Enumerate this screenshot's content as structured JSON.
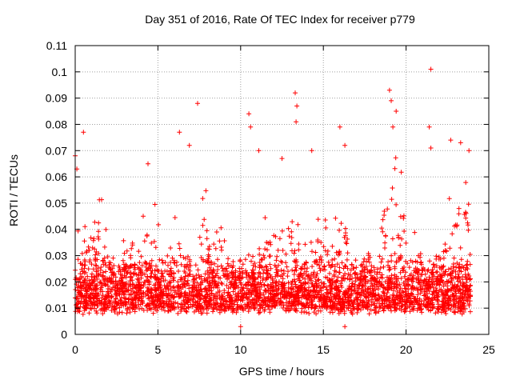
{
  "chart_data": {
    "type": "scatter",
    "title": "Day 351 of 2016, Rate Of TEC Index for receiver p779",
    "xlabel": "GPS time / hours",
    "ylabel": "ROTI / TECUs",
    "xlim": [
      0,
      25
    ],
    "ylim": [
      0,
      0.11
    ],
    "xticks": [
      "0",
      "5",
      "10",
      "15",
      "20",
      "25"
    ],
    "yticks": [
      "0",
      "0.01",
      "0.02",
      "0.03",
      "0.04",
      "0.05",
      "0.06",
      "0.07",
      "0.08",
      "0.09",
      "0.1",
      "0.11"
    ],
    "grid": true,
    "marker": "+",
    "marker_color": "#ff0000",
    "x_data_range": [
      0,
      23.9
    ],
    "typical_band": [
      0.005,
      0.03
    ],
    "peaks": [
      {
        "x": 0.0,
        "y": 0.068
      },
      {
        "x": 0.1,
        "y": 0.063
      },
      {
        "x": 0.5,
        "y": 0.077
      },
      {
        "x": 4.4,
        "y": 0.065
      },
      {
        "x": 6.3,
        "y": 0.077
      },
      {
        "x": 6.9,
        "y": 0.072
      },
      {
        "x": 7.4,
        "y": 0.088
      },
      {
        "x": 10.5,
        "y": 0.084
      },
      {
        "x": 10.6,
        "y": 0.079
      },
      {
        "x": 11.1,
        "y": 0.07
      },
      {
        "x": 12.5,
        "y": 0.067
      },
      {
        "x": 13.3,
        "y": 0.092
      },
      {
        "x": 13.4,
        "y": 0.087
      },
      {
        "x": 13.35,
        "y": 0.081
      },
      {
        "x": 14.3,
        "y": 0.07
      },
      {
        "x": 16.0,
        "y": 0.079
      },
      {
        "x": 16.3,
        "y": 0.072
      },
      {
        "x": 19.0,
        "y": 0.093
      },
      {
        "x": 19.1,
        "y": 0.089
      },
      {
        "x": 19.4,
        "y": 0.085
      },
      {
        "x": 19.2,
        "y": 0.079
      },
      {
        "x": 21.5,
        "y": 0.101
      },
      {
        "x": 21.4,
        "y": 0.079
      },
      {
        "x": 21.5,
        "y": 0.071
      },
      {
        "x": 22.7,
        "y": 0.074
      },
      {
        "x": 23.3,
        "y": 0.073
      },
      {
        "x": 23.8,
        "y": 0.07
      },
      {
        "x": 16.3,
        "y": 0.003
      },
      {
        "x": 10.0,
        "y": 0.003
      }
    ]
  }
}
